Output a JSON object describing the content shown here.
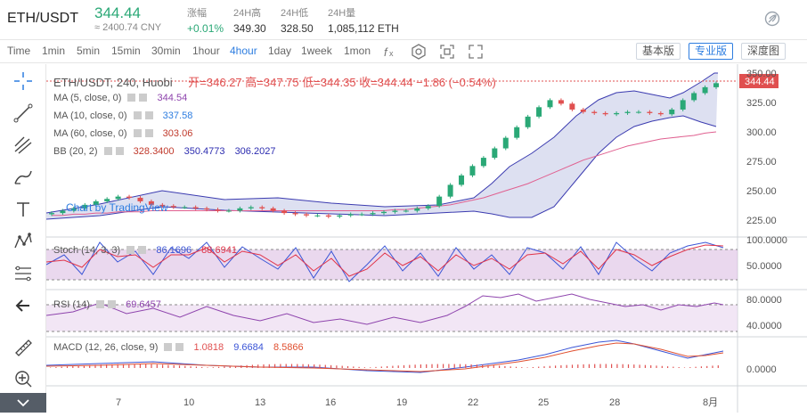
{
  "header": {
    "pair": "ETH/USDT",
    "price": "344.44",
    "price_cny": "≈ 2400.74 CNY",
    "stats": [
      {
        "label": "涨幅",
        "value": "+0.01%",
        "color": "green"
      },
      {
        "label": "24H高",
        "value": "349.30"
      },
      {
        "label": "24H低",
        "value": "328.50"
      },
      {
        "label": "24H量",
        "value": "1,085,112 ETH"
      }
    ]
  },
  "toolbar": {
    "time_label": "Time",
    "timeframes": [
      "1min",
      "5min",
      "15min",
      "30min",
      "1hour",
      "4hour",
      "1day",
      "1week",
      "1mon"
    ],
    "active_timeframe": "4hour",
    "views": [
      "基本版",
      "专业版",
      "深度图"
    ],
    "active_view": "专业版"
  },
  "chart": {
    "title": "ETH/USDT, 240, Huobi",
    "ohlc": "开=346.27  高=347.75  低=344.35  收=344.44  −1.86 (−0.54%)",
    "last_price_tag": "344.44",
    "watermark": "Chart by TradingView",
    "indicators": [
      {
        "label": "MA (5, close, 0)",
        "values": [
          "344.54"
        ],
        "colors": [
          "#8e44ad"
        ]
      },
      {
        "label": "MA (10, close, 0)",
        "values": [
          "337.58"
        ],
        "colors": [
          "#2d7de0"
        ]
      },
      {
        "label": "MA (60, close, 0)",
        "values": [
          "303.06"
        ],
        "colors": [
          "#c0392b"
        ]
      },
      {
        "label": "BB (20, 2)",
        "values": [
          "328.3400",
          "350.4773",
          "306.2027"
        ],
        "colors": [
          "#c0392b",
          "#2d2db0",
          "#2d2db0"
        ]
      }
    ],
    "stoch": {
      "label": "Stoch (14, 3, 3)",
      "values": [
        "86.1696",
        "88.6941"
      ]
    },
    "rsi": {
      "label": "RSI (14)",
      "value": "69.6457"
    },
    "macd": {
      "label": "MACD (12, 26, close, 9)",
      "values": [
        "1.0818",
        "9.6684",
        "8.5866"
      ]
    },
    "price_axis": [
      "350.00",
      "325.00",
      "300.00",
      "275.00",
      "250.00",
      "225.00"
    ],
    "stoch_axis": [
      "100.0000",
      "50.0000"
    ],
    "rsi_axis": [
      "80.0000",
      "40.0000"
    ],
    "macd_axis": [
      "0.0000"
    ],
    "x_axis": [
      "7",
      "10",
      "13",
      "16",
      "19",
      "22",
      "25",
      "28",
      "8月"
    ]
  },
  "chart_data": {
    "type": "candlestick",
    "title": "ETH/USDT, 240, Huobi",
    "ylim": [
      225,
      352
    ],
    "x_ticks": [
      "7",
      "10",
      "13",
      "16",
      "19",
      "22",
      "25",
      "28",
      "8月"
    ],
    "close_series": [
      234,
      236,
      238,
      241,
      244,
      246,
      248,
      247,
      244,
      241,
      240,
      239,
      239,
      238,
      237,
      236,
      236,
      238,
      239,
      238,
      236,
      234,
      233,
      232,
      232,
      231,
      232,
      233,
      233,
      234,
      235,
      236,
      236,
      238,
      240,
      248,
      258,
      266,
      274,
      281,
      289,
      298,
      307,
      316,
      324,
      330,
      327,
      322,
      320,
      319,
      318,
      319,
      320,
      320,
      319,
      318,
      322,
      330,
      336,
      341,
      344.44
    ],
    "ma60_series": [
      232,
      232,
      233,
      233,
      234,
      234,
      235,
      235,
      235,
      236,
      236,
      236,
      236,
      236,
      236,
      236,
      236,
      236,
      236,
      236,
      236,
      236,
      236,
      236,
      236,
      236,
      236,
      236,
      236,
      236,
      236,
      237,
      237,
      238,
      239,
      240,
      241,
      243,
      245,
      247,
      250,
      253,
      256,
      259,
      263,
      267,
      271,
      275,
      279,
      282,
      285,
      288,
      291,
      293,
      295,
      297,
      298,
      299,
      300,
      302,
      303.06
    ]
  }
}
